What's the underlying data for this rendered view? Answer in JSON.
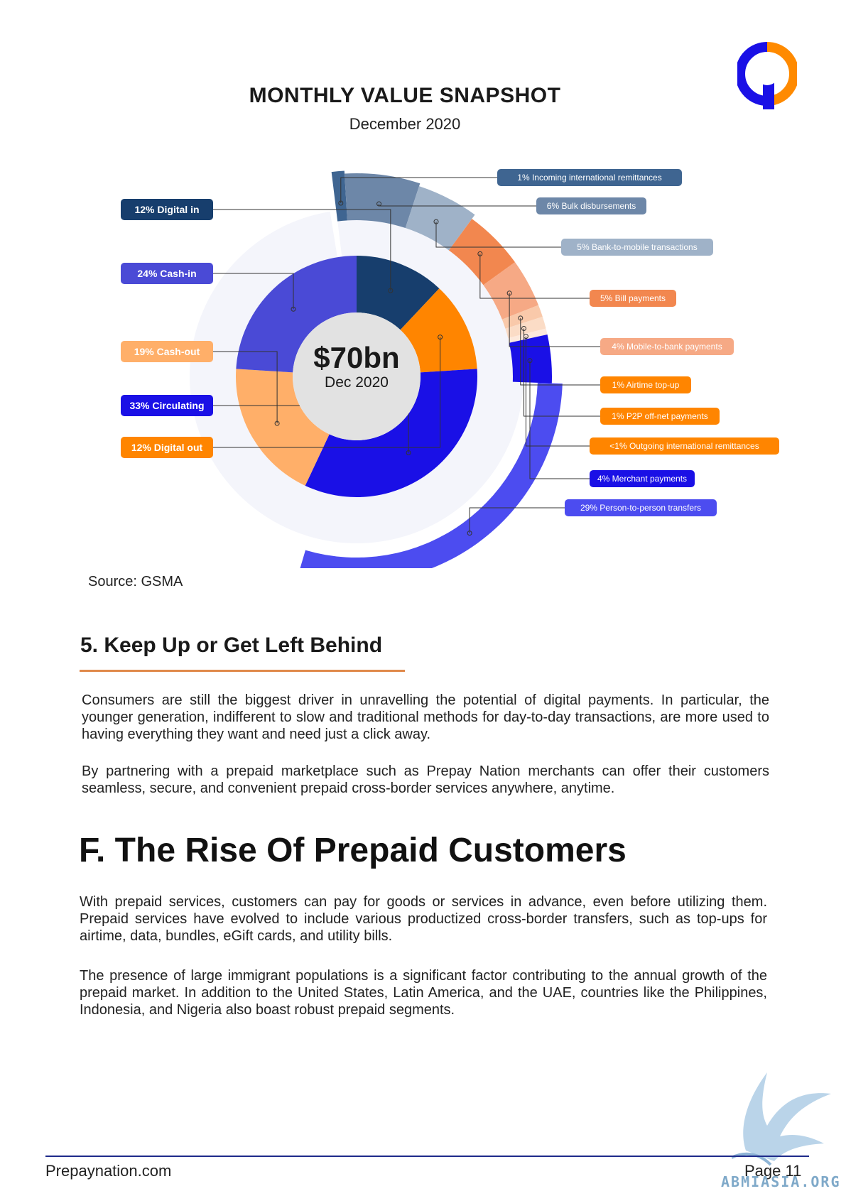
{
  "colors": {
    "navy": "#173e6d",
    "blue_violet": "#4a4ad6",
    "bright_blue": "#1a10e6",
    "orange": "#ff8500",
    "light_orange": "#ffaf69",
    "slate": "#6d87a8",
    "light_slate": "#9fb2c8",
    "deep_orange": "#f2874f",
    "salmon": "#f6a985",
    "lavender": "#e3e6fb",
    "person_blue": "#4c4cf0",
    "accent_rule": "#e0894a",
    "footer_rule": "#1e2a8a"
  },
  "icons": {
    "brand_logo": "prepay-nation-logo",
    "watermark": "abmiasia-bird-watermark"
  },
  "chart_data": {
    "type": "sunburst",
    "title": "MONTHLY VALUE SNAPSHOT",
    "subtitle": "December 2020",
    "center_value": "$70bn",
    "center_label": "Dec 2020",
    "inner_ring": [
      {
        "pct": 12,
        "label": "Digital in",
        "display": "12% Digital in",
        "color": "#173e6d"
      },
      {
        "pct": 12,
        "label": "Digital out",
        "display": "12% Digital out",
        "color": "#ff8500"
      },
      {
        "pct": 33,
        "label": "Circulating",
        "display": "33% Circulating",
        "color": "#1a10e6"
      },
      {
        "pct": 19,
        "label": "Cash-out",
        "display": "19% Cash-out",
        "color": "#ffaf69"
      },
      {
        "pct": 24,
        "label": "Cash-in",
        "display": "24% Cash-in",
        "color": "#4a4ad6"
      }
    ],
    "outer_ring": [
      {
        "pct": 1,
        "label": "Incoming international remittances",
        "display": "1% Incoming international remittances",
        "color": "#3f6591"
      },
      {
        "pct": 6,
        "label": "Bulk disbursements",
        "display": "6% Bulk disbursements",
        "color": "#6d87a8"
      },
      {
        "pct": 5,
        "label": "Bank-to-mobile transactions",
        "display": "5% Bank-to-mobile transactions",
        "color": "#9fb2c8"
      },
      {
        "pct": 5,
        "label": "Bill payments",
        "display": "5% Bill payments",
        "color": "#f2874f"
      },
      {
        "pct": 4,
        "label": "Mobile-to-bank payments",
        "display": "4% Mobile-to-bank payments",
        "color": "#f6a985"
      },
      {
        "pct": 1,
        "label": "Airtime top-up",
        "display": "1% Airtime top-up",
        "color": "#f9c9aa"
      },
      {
        "pct": 1,
        "label": "P2P off-net payments",
        "display": "1% P2P off-net payments",
        "color": "#fbdcc6"
      },
      {
        "pct": 0.5,
        "label": "Outgoing international remittances",
        "display": "<1% Outgoing international remittances",
        "color": "#fde9dc"
      },
      {
        "pct": 4,
        "label": "Merchant payments",
        "display": "4% Merchant payments",
        "color": "#1a10e6"
      },
      {
        "pct": 29,
        "label": "Person-to-person transfers",
        "display": "29% Person-to-person transfers",
        "color": "#4c4cf0"
      }
    ],
    "source": "Source: GSMA"
  },
  "section5": {
    "heading": "5. Keep Up or Get Left Behind",
    "p1": "Consumers are still the biggest driver in unravelling the potential of digital payments. In particular, the younger generation, indifferent to slow and traditional methods for day-to-day transactions, are more used to having everything they want and need just a click away.",
    "p2": "By partnering with a prepaid marketplace such as Prepay Nation merchants can offer their customers seamless, secure, and convenient prepaid cross-border services anywhere, anytime."
  },
  "sectionF": {
    "heading": "F. The Rise Of Prepaid Customers",
    "p1": "With prepaid services, customers can pay for goods or services in advance, even before utilizing them. Prepaid services have evolved to include various productized cross-border transfers, such as top-ups for airtime, data, bundles, eGift cards, and utility bills.",
    "p2": "The presence of large immigrant populations is a significant factor contributing to the annual growth of the prepaid market. In addition to the United States, Latin America, and the UAE, countries like the Philippines, Indonesia, and Nigeria also boast robust prepaid segments."
  },
  "footer": {
    "site": "Prepaynation.com",
    "page": "Page 11",
    "watermark_text": "ABMIASIA.ORG"
  }
}
